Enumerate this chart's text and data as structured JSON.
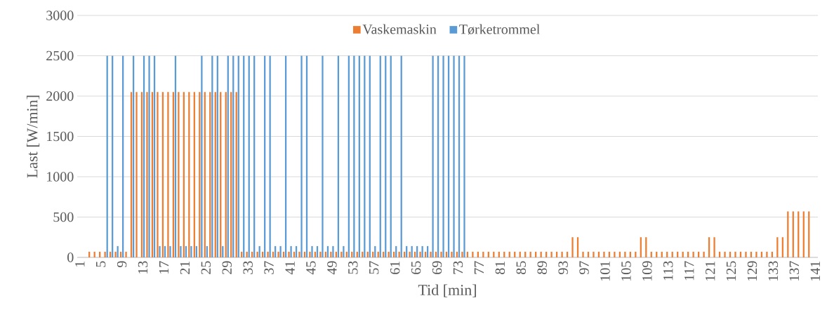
{
  "chart_data": {
    "type": "bar",
    "xlabel": "Tid [min]",
    "ylabel": "Last [W/min]",
    "categories": [
      "1",
      null,
      null,
      null,
      "5",
      null,
      null,
      null,
      "9",
      null,
      null,
      null,
      "13",
      null,
      null,
      null,
      "17",
      null,
      null,
      null,
      "21",
      null,
      null,
      null,
      "25",
      null,
      null,
      null,
      "29",
      null,
      null,
      null,
      "33",
      null,
      null,
      null,
      "37",
      null,
      null,
      null,
      "41",
      null,
      null,
      null,
      "45",
      null,
      null,
      null,
      "49",
      null,
      null,
      null,
      "53",
      null,
      null,
      null,
      "57",
      null,
      null,
      null,
      "61",
      null,
      null,
      null,
      "65",
      null,
      null,
      null,
      "69",
      null,
      null,
      null,
      "73",
      null,
      null,
      null,
      "77",
      null,
      null,
      null,
      "81",
      null,
      null,
      null,
      "85",
      null,
      null,
      null,
      "89",
      null,
      null,
      null,
      "93",
      null,
      null,
      null,
      "97",
      null,
      null,
      null,
      "101",
      null,
      null,
      null,
      "105",
      null,
      null,
      null,
      "109",
      null,
      null,
      null,
      "113",
      null,
      null,
      null,
      "117",
      null,
      null,
      null,
      "121",
      null,
      null,
      null,
      "125",
      null,
      null,
      null,
      "129",
      null,
      null,
      null,
      "133",
      null,
      null,
      null,
      "137",
      null,
      null,
      null,
      "141"
    ],
    "series": [
      {
        "name": "Vaskemaskin",
        "color": "#ed7d31",
        "values": [
          0,
          0,
          70,
          70,
          70,
          70,
          70,
          70,
          70,
          70,
          2050,
          2050,
          2050,
          2050,
          2050,
          2050,
          2050,
          2050,
          2050,
          2050,
          2050,
          2050,
          2050,
          2050,
          2050,
          2050,
          2050,
          2050,
          2050,
          2050,
          2050,
          70,
          70,
          70,
          70,
          70,
          70,
          70,
          70,
          70,
          70,
          70,
          70,
          70,
          70,
          70,
          70,
          70,
          70,
          70,
          70,
          70,
          70,
          70,
          70,
          70,
          70,
          70,
          70,
          70,
          70,
          70,
          70,
          70,
          70,
          70,
          70,
          70,
          70,
          70,
          70,
          70,
          70,
          70,
          70,
          70,
          70,
          70,
          70,
          70,
          70,
          70,
          70,
          70,
          70,
          70,
          70,
          70,
          70,
          70,
          70,
          70,
          70,
          70,
          250,
          250,
          70,
          70,
          70,
          70,
          70,
          70,
          70,
          70,
          70,
          70,
          70,
          250,
          250,
          70,
          70,
          70,
          70,
          70,
          70,
          70,
          70,
          70,
          70,
          70,
          250,
          250,
          70,
          70,
          70,
          70,
          70,
          70,
          70,
          70,
          70,
          70,
          70,
          250,
          250,
          570,
          570,
          570,
          570,
          570,
          0
        ]
      },
      {
        "name": "Tørketrommel",
        "color": "#5b9bd5",
        "values": [
          0,
          0,
          0,
          0,
          0,
          2500,
          2500,
          140,
          2500,
          0,
          2500,
          0,
          2500,
          2500,
          2500,
          140,
          140,
          140,
          2500,
          140,
          140,
          140,
          140,
          2500,
          140,
          2500,
          2500,
          140,
          2500,
          2500,
          2500,
          2500,
          2500,
          2500,
          140,
          2500,
          2500,
          140,
          140,
          2500,
          140,
          140,
          2500,
          2500,
          140,
          140,
          2500,
          140,
          140,
          2500,
          140,
          2500,
          2500,
          2500,
          2500,
          2500,
          140,
          2500,
          2500,
          2500,
          140,
          2500,
          140,
          140,
          140,
          140,
          140,
          2500,
          2500,
          2500,
          2500,
          2500,
          2500,
          2500,
          0,
          0,
          0,
          0,
          0,
          0,
          0,
          0,
          0,
          0,
          0,
          0,
          0,
          0,
          0,
          0,
          0,
          0,
          0,
          0,
          0,
          0,
          0,
          0,
          0,
          0,
          0,
          0,
          0,
          0,
          0,
          0,
          0,
          0,
          0,
          0,
          0,
          0,
          0,
          0,
          0,
          0,
          0,
          0,
          0,
          0,
          0,
          0,
          0,
          0,
          0,
          0,
          0,
          0,
          0,
          0,
          0,
          0,
          0,
          0,
          0,
          0,
          0,
          0,
          0,
          0,
          0
        ]
      }
    ],
    "ylim": [
      0,
      3000
    ],
    "yticks": [
      0,
      500,
      1000,
      1500,
      2000,
      2500,
      3000
    ],
    "grid": "y",
    "legend": "top"
  }
}
